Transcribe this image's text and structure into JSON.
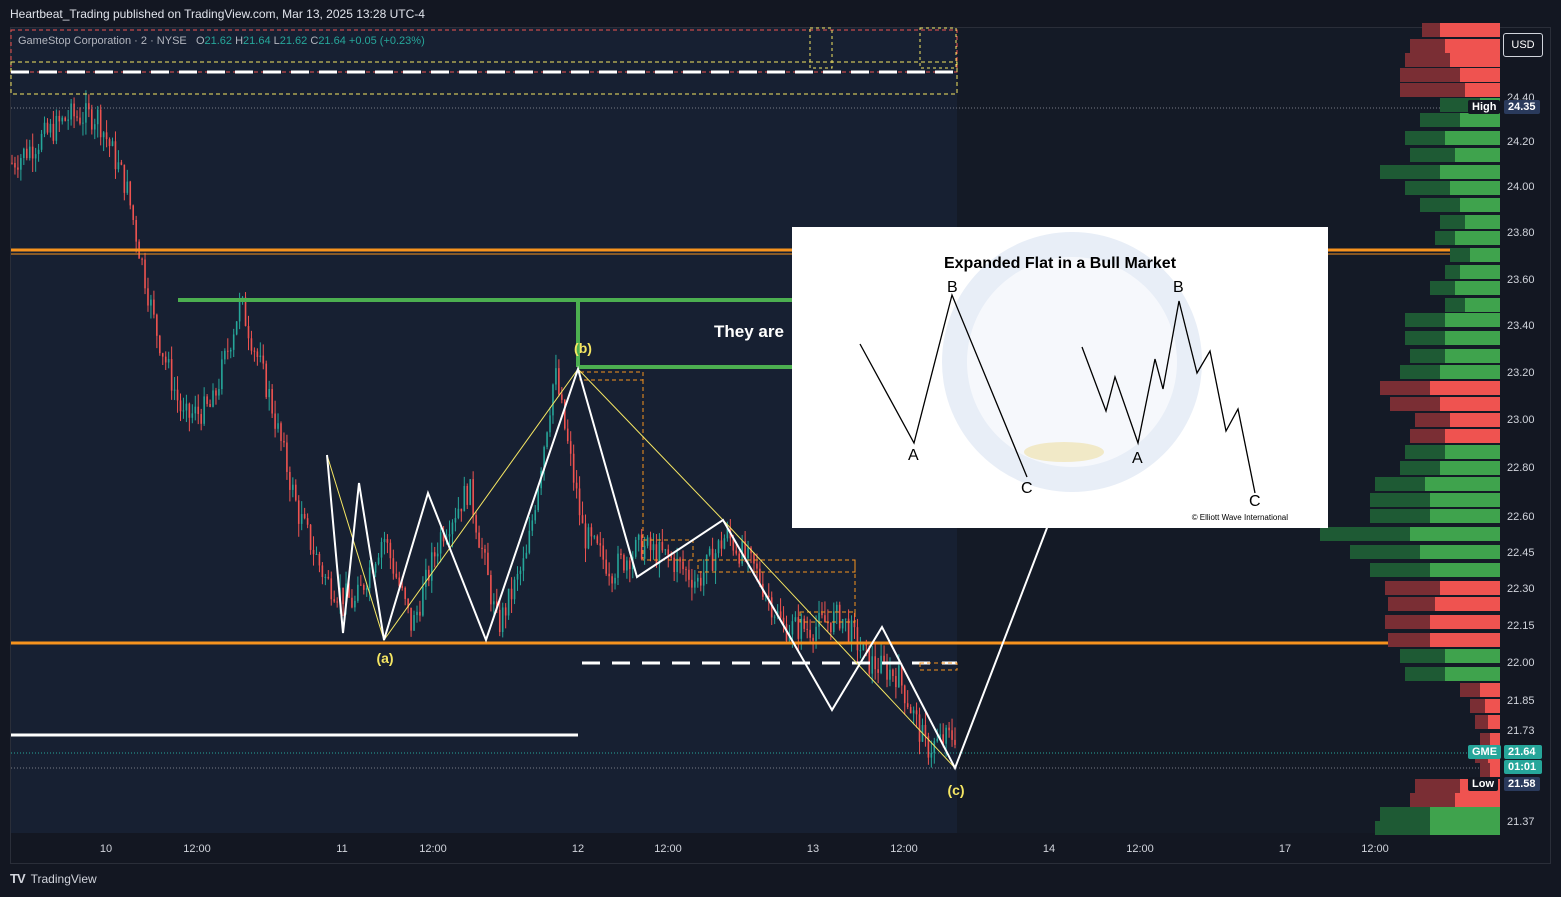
{
  "header": {
    "published_by": "Heartbeat_Trading published on TradingView.com, Mar 13, 2025 13:28 UTC-4"
  },
  "legend": {
    "symbol": "GameStop Corporation · 2 · NYSE",
    "o_label": "O",
    "o_value": "21.62",
    "h_label": "H",
    "h_value": "21.64",
    "l_label": "L",
    "l_value": "21.62",
    "c_label": "C",
    "c_value": "21.64",
    "change": "+0.05 (+0.23%)"
  },
  "currency_button": "USD",
  "price_axis": {
    "ticks": [
      "24.40",
      "24.20",
      "24.00",
      "23.80",
      "23.60",
      "23.40",
      "23.20",
      "23.00",
      "22.80",
      "22.60",
      "22.45",
      "22.30",
      "22.15",
      "22.00",
      "21.85",
      "21.73",
      "21.37"
    ]
  },
  "tags": {
    "high_label": "High",
    "high_value": "24.35",
    "gme_label": "GME",
    "gme_value": "21.64",
    "gme_time": "01:01",
    "low_label": "Low",
    "low_value": "21.58"
  },
  "time_axis": {
    "ticks": [
      "10",
      "12:00",
      "11",
      "12:00",
      "12",
      "12:00",
      "13",
      "12:00",
      "14",
      "12:00",
      "17",
      "12:00"
    ]
  },
  "wave_labels": {
    "a": "(a)",
    "b": "(b)",
    "c": "(c)"
  },
  "overlay_text": "They are",
  "inset": {
    "title": "Expanded Flat in a Bull Market",
    "labels": [
      "B",
      "A",
      "C",
      "B",
      "A",
      "C"
    ],
    "copyright": "© Elliott Wave International"
  },
  "footer": {
    "brand": "TradingView"
  },
  "colors": {
    "background": "#131722",
    "up": "#26a69a",
    "down": "#ef5350",
    "support_line": "#f7931e",
    "wave_yellow": "#f5e663",
    "green_box": "#4caf50"
  },
  "chart_data": {
    "type": "line",
    "price_range": [
      21.3,
      24.55
    ],
    "series": [
      {
        "values": [
          24.1,
          24.2,
          24.3,
          24.3,
          24.0,
          23.4,
          23.0,
          23.05,
          23.5,
          23.1,
          22.6,
          22.3,
          22.2,
          22.5,
          22.1,
          22.5,
          22.7,
          22.1,
          22.4,
          23.2,
          22.5,
          22.35,
          22.45,
          22.4,
          22.3,
          22.5,
          22.35,
          22.1,
          22.1,
          22.15,
          21.95,
          21.9,
          21.58,
          21.64
        ]
      }
    ],
    "wave_pattern": {
      "a_low": 22.1,
      "b_high": 23.22,
      "c_low": 21.58
    },
    "horizontal_levels": [
      23.72,
      22.09,
      21.99,
      21.75
    ],
    "volume_profile": "right"
  }
}
